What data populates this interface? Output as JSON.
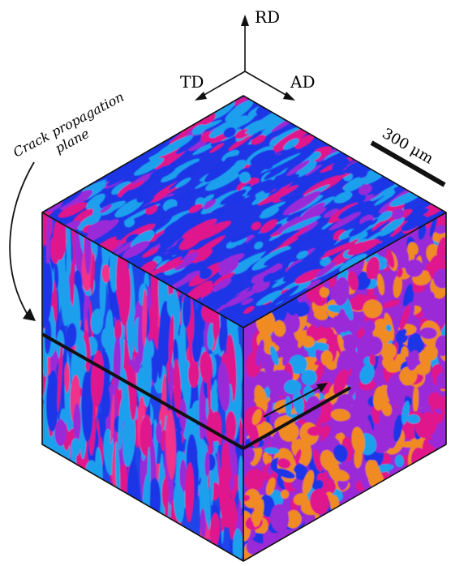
{
  "axes": {
    "rd": "RD",
    "td": "TD",
    "ad": "AD"
  },
  "annotation": {
    "line1": "Crack propagation",
    "line2": "plane"
  },
  "scale_bar": {
    "label": "300 μm"
  },
  "colors": {
    "blue": "#1f35e6",
    "light_blue": "#1fa0ee",
    "magenta": "#e0148c",
    "pink": "#f0308a",
    "purple": "#9a2ad8",
    "orange": "#f08a20",
    "edge": "#111111"
  }
}
